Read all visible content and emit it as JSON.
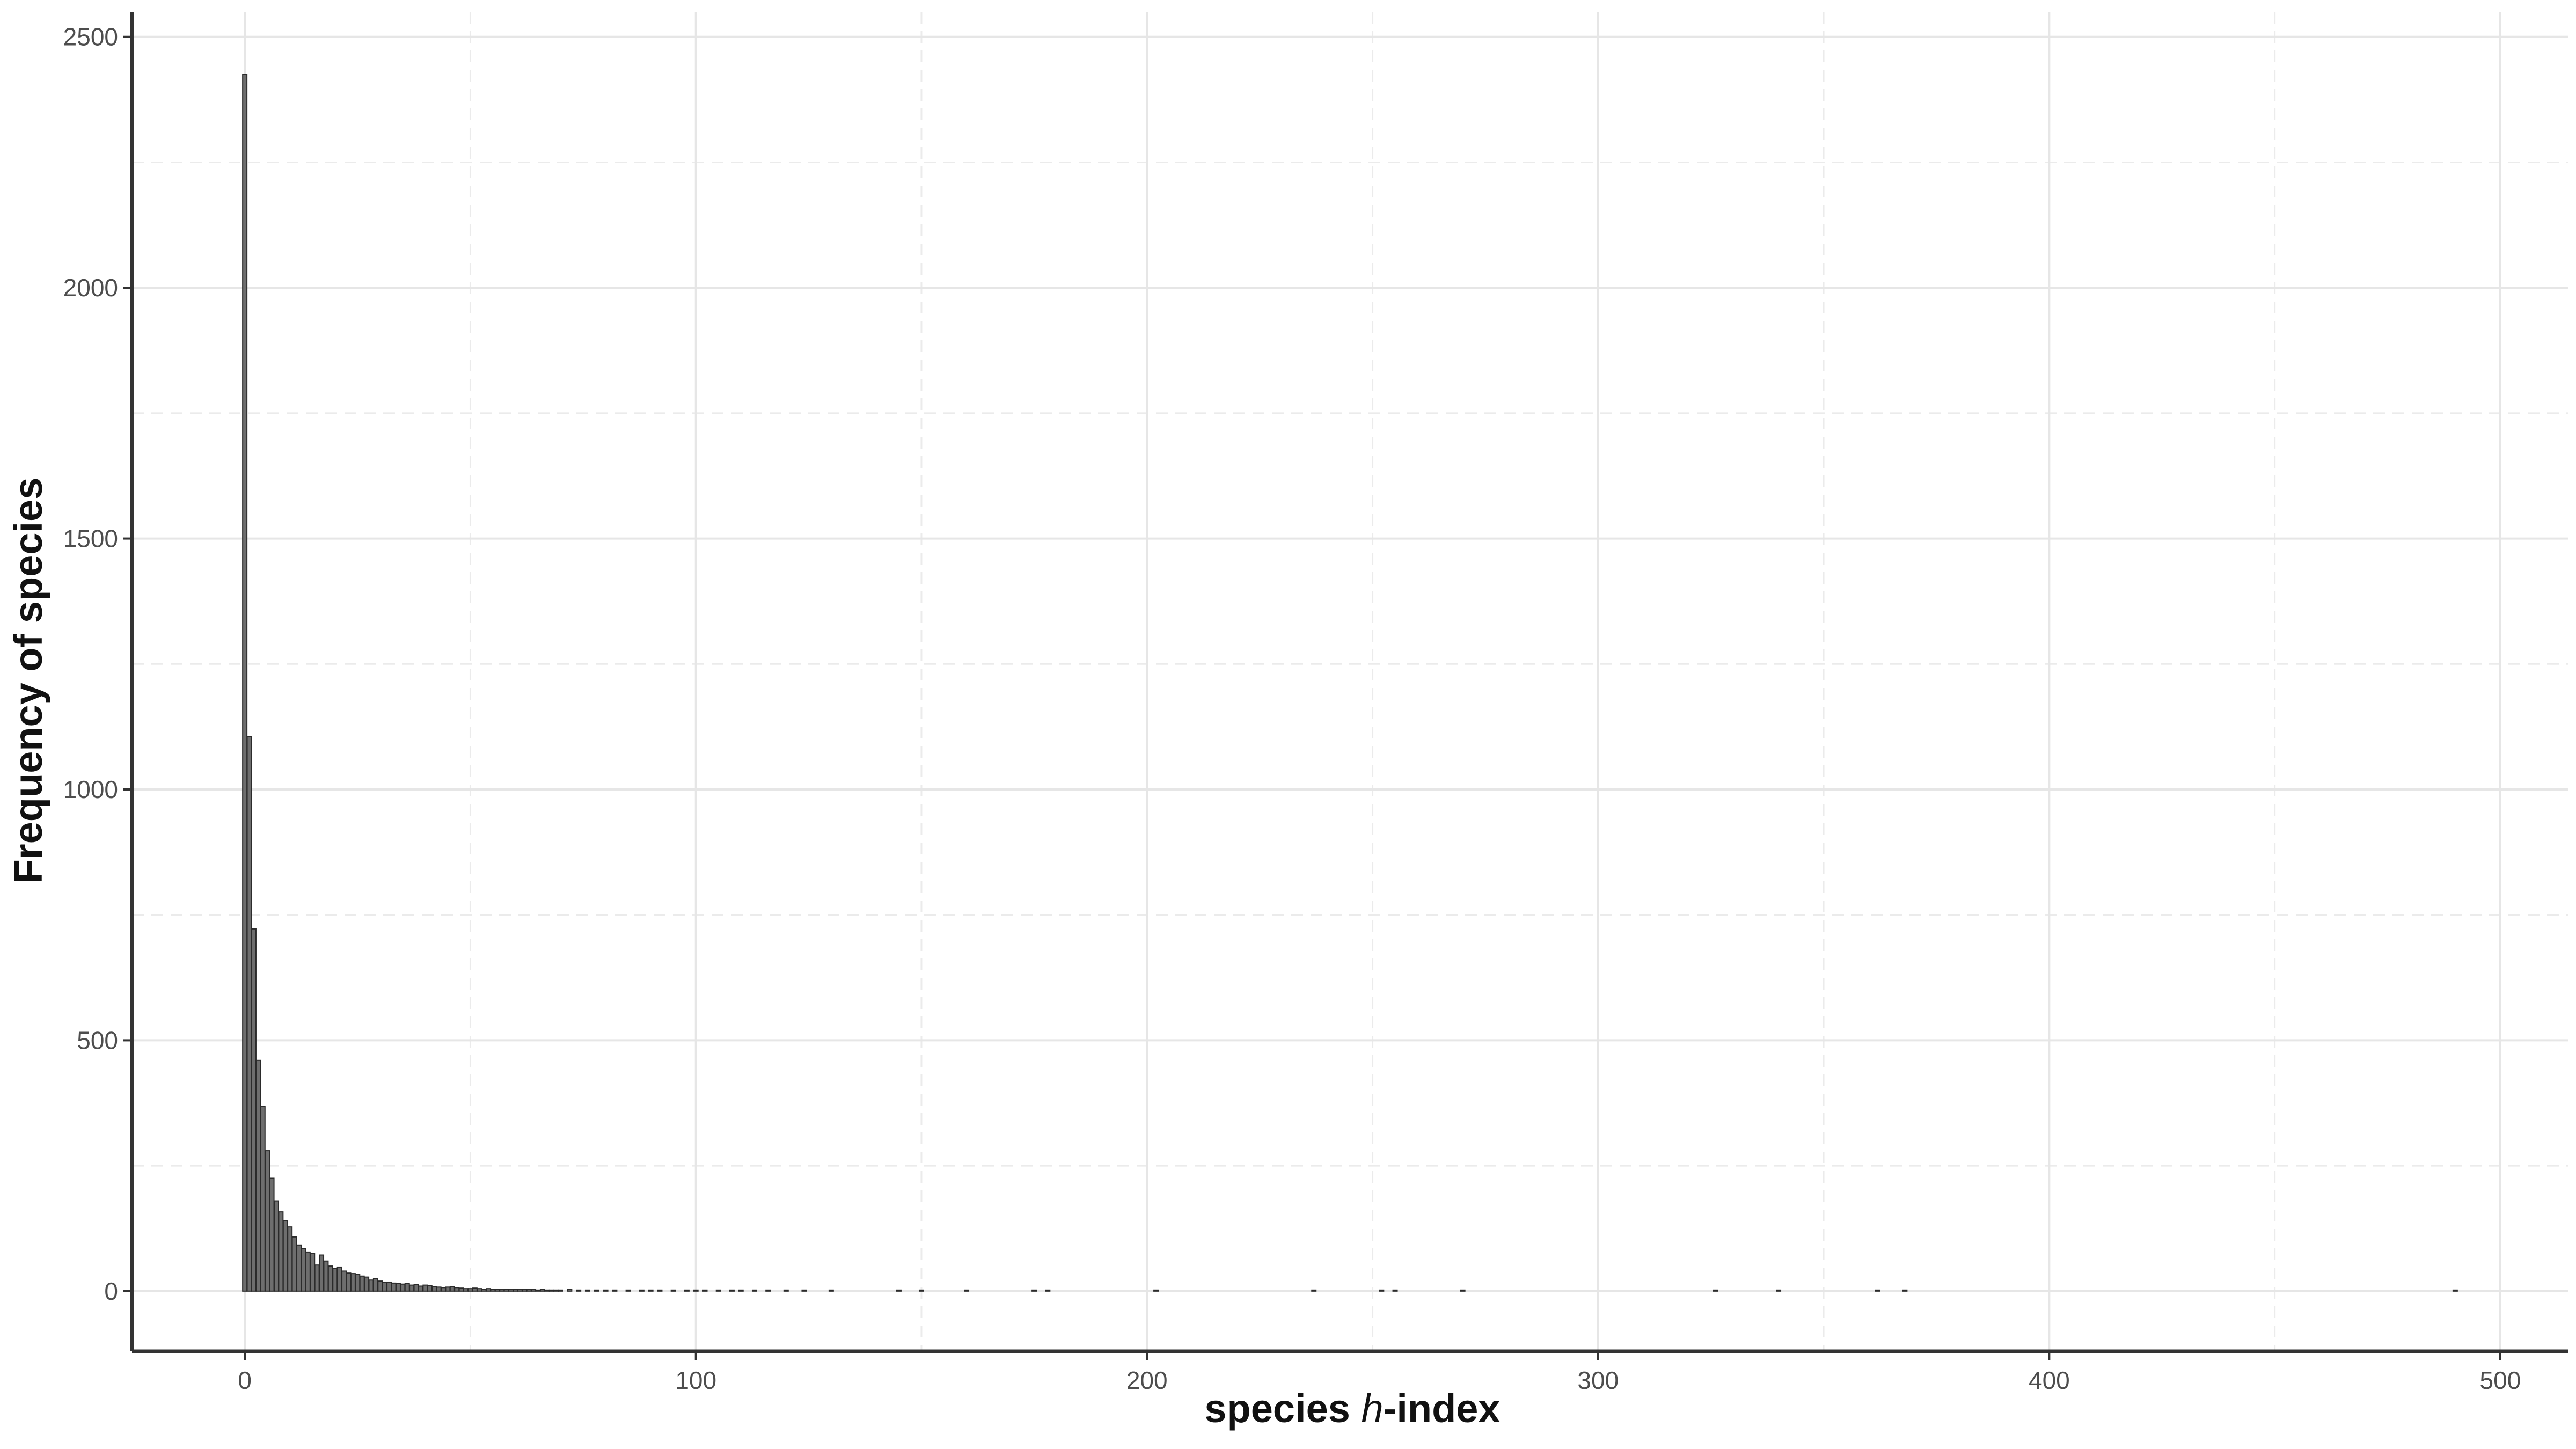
{
  "chart_data": {
    "type": "bar",
    "xlabel_prefix": "species ",
    "xlabel_italic": "h",
    "xlabel_suffix": "-index",
    "ylabel": "Frequency of species",
    "xlim": [
      -25,
      515
    ],
    "ylim": [
      -120,
      2550
    ],
    "x_ticks": [
      0,
      100,
      200,
      300,
      400,
      500
    ],
    "y_ticks": [
      0,
      500,
      1000,
      1500,
      2000,
      2500
    ],
    "x_minor_ticks": [
      50,
      150,
      250,
      350,
      450
    ],
    "y_minor_ticks": [
      250,
      750,
      1250,
      1750,
      2250
    ],
    "grid": true,
    "colors": {
      "bar_fill": "#6e6e6e",
      "bar_edge": "#2b2b2b",
      "axis": "#333333"
    },
    "x": [
      0,
      1,
      2,
      3,
      4,
      5,
      6,
      7,
      8,
      9,
      10,
      11,
      12,
      13,
      14,
      15,
      16,
      17,
      18,
      19,
      20,
      21,
      22,
      23,
      24,
      25,
      26,
      27,
      28,
      29,
      30,
      31,
      32,
      33,
      34,
      35,
      36,
      37,
      38,
      39,
      40,
      41,
      42,
      43,
      44,
      45,
      46,
      47,
      48,
      49,
      50,
      51,
      52,
      53,
      54,
      55,
      56,
      57,
      58,
      59,
      60,
      61,
      62,
      63,
      64,
      65,
      66,
      67,
      68,
      69,
      70,
      72,
      74,
      76,
      78,
      80,
      82,
      85,
      88,
      90,
      92,
      95,
      98,
      100,
      102,
      105,
      108,
      110,
      113,
      116,
      120,
      124,
      130,
      145,
      150,
      160,
      175,
      178,
      202,
      237,
      252,
      255,
      270,
      326,
      340,
      362,
      368,
      490
    ],
    "values": [
      2425,
      1105,
      722,
      460,
      368,
      280,
      225,
      180,
      158,
      140,
      128,
      108,
      92,
      85,
      78,
      75,
      52,
      72,
      60,
      50,
      45,
      48,
      40,
      36,
      35,
      33,
      30,
      28,
      22,
      25,
      20,
      18,
      18,
      16,
      15,
      14,
      15,
      12,
      13,
      10,
      12,
      11,
      9,
      8,
      7,
      8,
      9,
      7,
      6,
      5,
      5,
      6,
      5,
      4,
      5,
      4,
      4,
      3,
      4,
      3,
      4,
      3,
      3,
      3,
      3,
      2,
      3,
      2,
      2,
      2,
      2,
      3,
      2,
      2,
      2,
      2,
      2,
      1,
      2,
      1,
      1,
      2,
      1,
      1,
      2,
      1,
      1,
      1,
      1,
      1,
      1,
      1,
      1,
      1,
      1,
      1,
      1,
      1,
      1,
      1,
      1,
      1,
      1,
      1,
      1,
      1,
      1,
      1
    ]
  }
}
